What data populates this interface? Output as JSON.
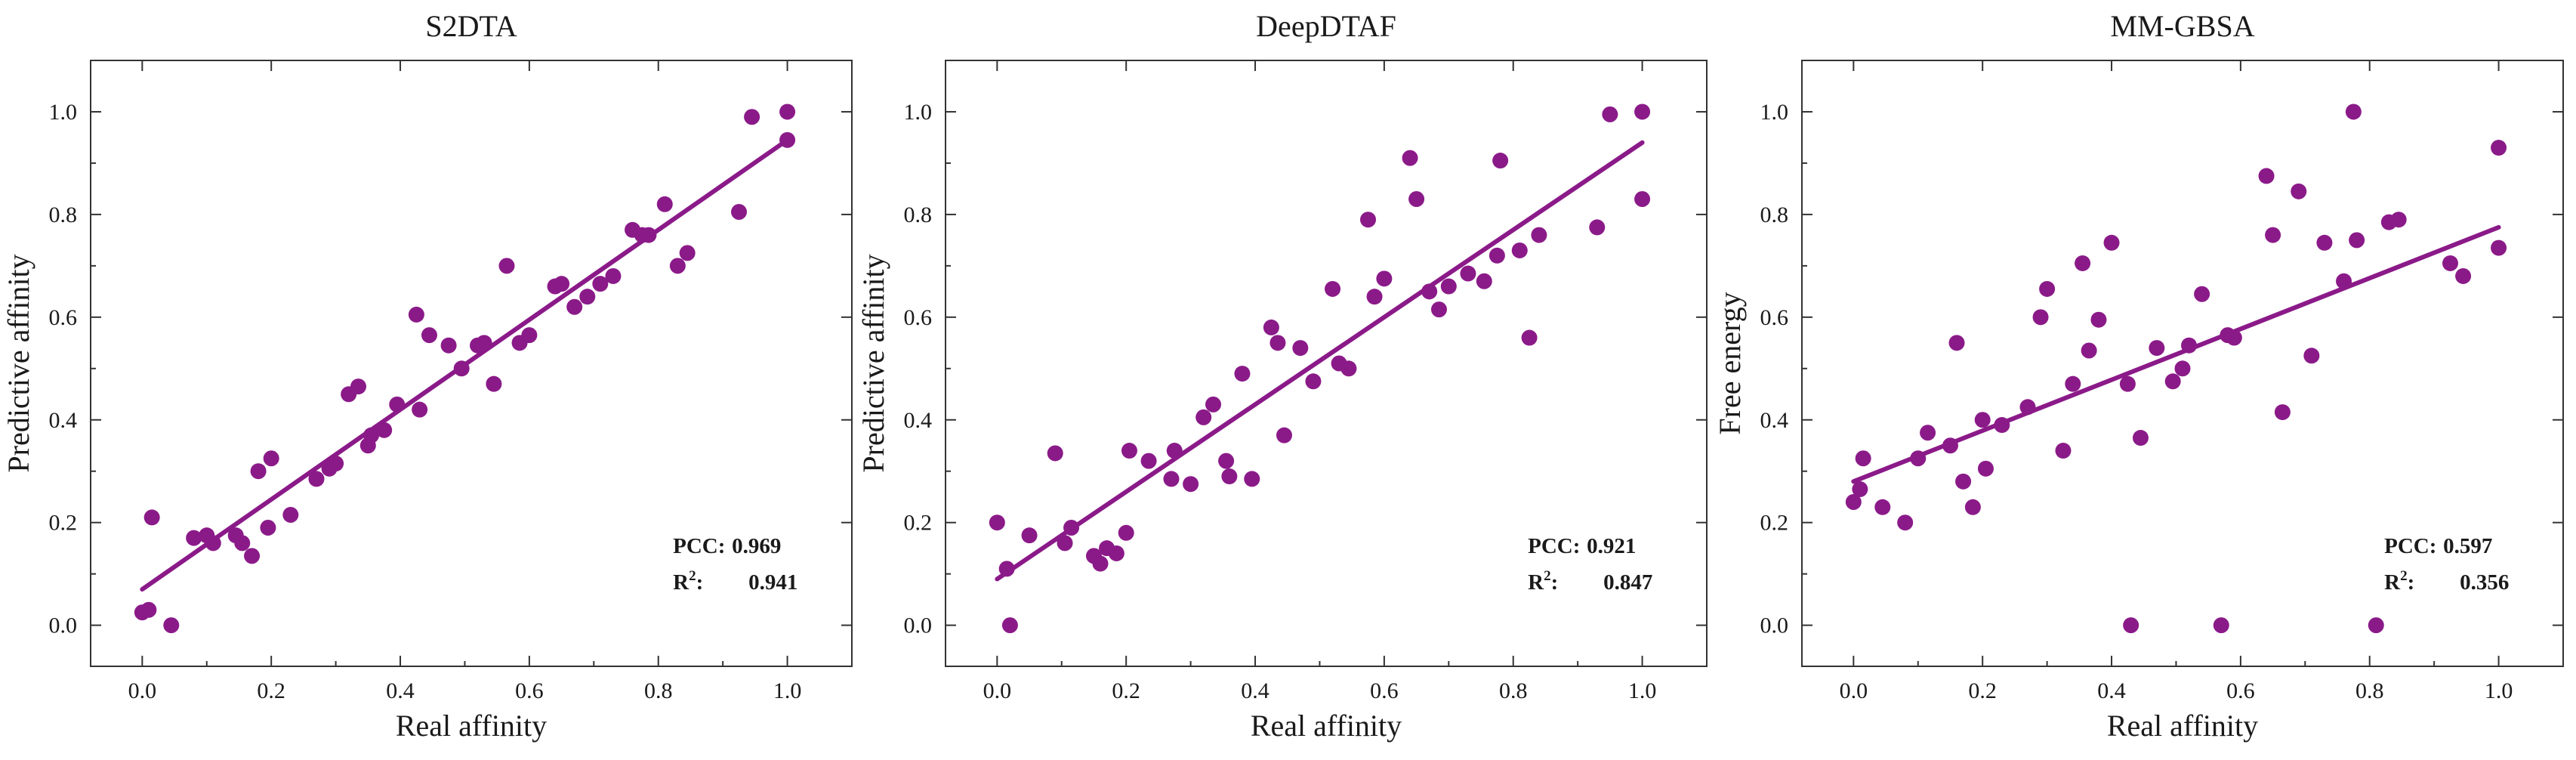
{
  "figure": {
    "description_domain": "scatter plots of predicted vs real affinity"
  },
  "colors": {
    "marker": "#8b1a89",
    "fit_line": "#8b1a89",
    "frame": "#333333"
  },
  "chart_data": [
    {
      "type": "scatter",
      "title": "S2DTA",
      "xlabel": "Real affinity",
      "ylabel": "Predictive affinity",
      "xlim": [
        -0.08,
        1.1
      ],
      "ylim": [
        -0.08,
        1.1
      ],
      "xticks": [
        0.0,
        0.2,
        0.4,
        0.6,
        0.8,
        1.0
      ],
      "yticks": [
        0.0,
        0.2,
        0.4,
        0.6,
        0.8,
        1.0
      ],
      "xtick_labels": [
        "0.0",
        "0.2",
        "0.4",
        "0.6",
        "0.8",
        "1.0"
      ],
      "ytick_labels": [
        "0.0",
        "0.2",
        "0.4",
        "0.6",
        "0.8",
        "1.0"
      ],
      "stats": {
        "pcc_label": "PCC:",
        "pcc_value": "0.969",
        "r2_label": "R",
        "r2_sup": "2",
        "r2_colon": ":",
        "r2_value": "0.941"
      },
      "fit": {
        "x": [
          0.0,
          1.0
        ],
        "y": [
          0.07,
          0.945
        ]
      },
      "points": [
        [
          0.0,
          0.025
        ],
        [
          0.01,
          0.03
        ],
        [
          0.015,
          0.21
        ],
        [
          0.045,
          0.0
        ],
        [
          0.08,
          0.17
        ],
        [
          0.1,
          0.175
        ],
        [
          0.11,
          0.16
        ],
        [
          0.145,
          0.175
        ],
        [
          0.155,
          0.16
        ],
        [
          0.17,
          0.135
        ],
        [
          0.18,
          0.3
        ],
        [
          0.195,
          0.19
        ],
        [
          0.2,
          0.325
        ],
        [
          0.23,
          0.215
        ],
        [
          0.27,
          0.285
        ],
        [
          0.29,
          0.305
        ],
        [
          0.3,
          0.315
        ],
        [
          0.32,
          0.45
        ],
        [
          0.335,
          0.465
        ],
        [
          0.35,
          0.35
        ],
        [
          0.355,
          0.37
        ],
        [
          0.375,
          0.38
        ],
        [
          0.395,
          0.43
        ],
        [
          0.425,
          0.605
        ],
        [
          0.43,
          0.42
        ],
        [
          0.445,
          0.565
        ],
        [
          0.475,
          0.545
        ],
        [
          0.495,
          0.5
        ],
        [
          0.52,
          0.545
        ],
        [
          0.53,
          0.55
        ],
        [
          0.545,
          0.47
        ],
        [
          0.565,
          0.7
        ],
        [
          0.585,
          0.55
        ],
        [
          0.6,
          0.565
        ],
        [
          0.64,
          0.66
        ],
        [
          0.65,
          0.665
        ],
        [
          0.67,
          0.62
        ],
        [
          0.69,
          0.64
        ],
        [
          0.71,
          0.665
        ],
        [
          0.73,
          0.68
        ],
        [
          0.76,
          0.77
        ],
        [
          0.775,
          0.76
        ],
        [
          0.785,
          0.76
        ],
        [
          0.81,
          0.82
        ],
        [
          0.83,
          0.7
        ],
        [
          0.845,
          0.725
        ],
        [
          0.925,
          0.805
        ],
        [
          0.945,
          0.99
        ],
        [
          1.0,
          1.0
        ],
        [
          1.0,
          0.945
        ]
      ]
    },
    {
      "type": "scatter",
      "title": "DeepDTAF",
      "xlabel": "Real affinity",
      "ylabel": "Predictive affinity",
      "xlim": [
        -0.08,
        1.1
      ],
      "ylim": [
        -0.08,
        1.1
      ],
      "xticks": [
        0.0,
        0.2,
        0.4,
        0.6,
        0.8,
        1.0
      ],
      "yticks": [
        0.0,
        0.2,
        0.4,
        0.6,
        0.8,
        1.0
      ],
      "xtick_labels": [
        "0.0",
        "0.2",
        "0.4",
        "0.6",
        "0.8",
        "1.0"
      ],
      "ytick_labels": [
        "0.0",
        "0.2",
        "0.4",
        "0.6",
        "0.8",
        "1.0"
      ],
      "stats": {
        "pcc_label": "PCC:",
        "pcc_value": "0.921",
        "r2_label": "R",
        "r2_sup": "2",
        "r2_colon": ":",
        "r2_value": "0.847"
      },
      "fit": {
        "x": [
          0.0,
          1.0
        ],
        "y": [
          0.09,
          0.94
        ]
      },
      "points": [
        [
          0.0,
          0.2
        ],
        [
          0.015,
          0.11
        ],
        [
          0.02,
          0.0
        ],
        [
          0.05,
          0.175
        ],
        [
          0.09,
          0.335
        ],
        [
          0.105,
          0.16
        ],
        [
          0.115,
          0.19
        ],
        [
          0.15,
          0.135
        ],
        [
          0.16,
          0.12
        ],
        [
          0.17,
          0.15
        ],
        [
          0.185,
          0.14
        ],
        [
          0.2,
          0.18
        ],
        [
          0.205,
          0.34
        ],
        [
          0.235,
          0.32
        ],
        [
          0.27,
          0.285
        ],
        [
          0.275,
          0.34
        ],
        [
          0.3,
          0.275
        ],
        [
          0.32,
          0.405
        ],
        [
          0.335,
          0.43
        ],
        [
          0.355,
          0.32
        ],
        [
          0.36,
          0.29
        ],
        [
          0.38,
          0.49
        ],
        [
          0.395,
          0.285
        ],
        [
          0.425,
          0.58
        ],
        [
          0.435,
          0.55
        ],
        [
          0.445,
          0.37
        ],
        [
          0.47,
          0.54
        ],
        [
          0.49,
          0.475
        ],
        [
          0.52,
          0.655
        ],
        [
          0.53,
          0.51
        ],
        [
          0.545,
          0.5
        ],
        [
          0.575,
          0.79
        ],
        [
          0.585,
          0.64
        ],
        [
          0.6,
          0.675
        ],
        [
          0.64,
          0.91
        ],
        [
          0.65,
          0.83
        ],
        [
          0.67,
          0.65
        ],
        [
          0.685,
          0.615
        ],
        [
          0.7,
          0.66
        ],
        [
          0.73,
          0.685
        ],
        [
          0.755,
          0.67
        ],
        [
          0.775,
          0.72
        ],
        [
          0.78,
          0.905
        ],
        [
          0.81,
          0.73
        ],
        [
          0.825,
          0.56
        ],
        [
          0.84,
          0.76
        ],
        [
          0.93,
          0.775
        ],
        [
          0.95,
          0.995
        ],
        [
          1.0,
          1.0
        ],
        [
          1.0,
          0.83
        ]
      ]
    },
    {
      "type": "scatter",
      "title": "MM-GBSA",
      "xlabel": "Real affinity",
      "ylabel": "Free energy",
      "xlim": [
        -0.08,
        1.1
      ],
      "ylim": [
        -0.08,
        1.1
      ],
      "xticks": [
        0.0,
        0.2,
        0.4,
        0.6,
        0.8,
        1.0
      ],
      "yticks": [
        0.0,
        0.2,
        0.4,
        0.6,
        0.8,
        1.0
      ],
      "xtick_labels": [
        "0.0",
        "0.2",
        "0.4",
        "0.6",
        "0.8",
        "1.0"
      ],
      "ytick_labels": [
        "0.0",
        "0.2",
        "0.4",
        "0.6",
        "0.8",
        "1.0"
      ],
      "stats": {
        "pcc_label": "PCC:",
        "pcc_value": "0.597",
        "r2_label": "R",
        "r2_sup": "2",
        "r2_colon": ":",
        "r2_value": "0.356"
      },
      "fit": {
        "x": [
          0.0,
          1.0
        ],
        "y": [
          0.28,
          0.775
        ]
      },
      "points": [
        [
          0.0,
          0.24
        ],
        [
          0.01,
          0.265
        ],
        [
          0.015,
          0.325
        ],
        [
          0.045,
          0.23
        ],
        [
          0.08,
          0.2
        ],
        [
          0.1,
          0.325
        ],
        [
          0.115,
          0.375
        ],
        [
          0.15,
          0.35
        ],
        [
          0.16,
          0.55
        ],
        [
          0.17,
          0.28
        ],
        [
          0.185,
          0.23
        ],
        [
          0.2,
          0.4
        ],
        [
          0.205,
          0.305
        ],
        [
          0.23,
          0.39
        ],
        [
          0.27,
          0.425
        ],
        [
          0.29,
          0.6
        ],
        [
          0.3,
          0.655
        ],
        [
          0.325,
          0.34
        ],
        [
          0.34,
          0.47
        ],
        [
          0.355,
          0.705
        ],
        [
          0.365,
          0.535
        ],
        [
          0.38,
          0.595
        ],
        [
          0.4,
          0.745
        ],
        [
          0.425,
          0.47
        ],
        [
          0.43,
          0.0
        ],
        [
          0.445,
          0.365
        ],
        [
          0.47,
          0.54
        ],
        [
          0.495,
          0.475
        ],
        [
          0.51,
          0.5
        ],
        [
          0.52,
          0.545
        ],
        [
          0.54,
          0.645
        ],
        [
          0.57,
          0.0
        ],
        [
          0.58,
          0.565
        ],
        [
          0.59,
          0.56
        ],
        [
          0.64,
          0.875
        ],
        [
          0.65,
          0.76
        ],
        [
          0.665,
          0.415
        ],
        [
          0.69,
          0.845
        ],
        [
          0.71,
          0.525
        ],
        [
          0.73,
          0.745
        ],
        [
          0.76,
          0.67
        ],
        [
          0.775,
          1.0
        ],
        [
          0.78,
          0.75
        ],
        [
          0.81,
          0.0
        ],
        [
          0.83,
          0.785
        ],
        [
          0.845,
          0.79
        ],
        [
          0.925,
          0.705
        ],
        [
          0.945,
          0.68
        ],
        [
          1.0,
          0.93
        ],
        [
          1.0,
          0.735
        ]
      ]
    }
  ]
}
